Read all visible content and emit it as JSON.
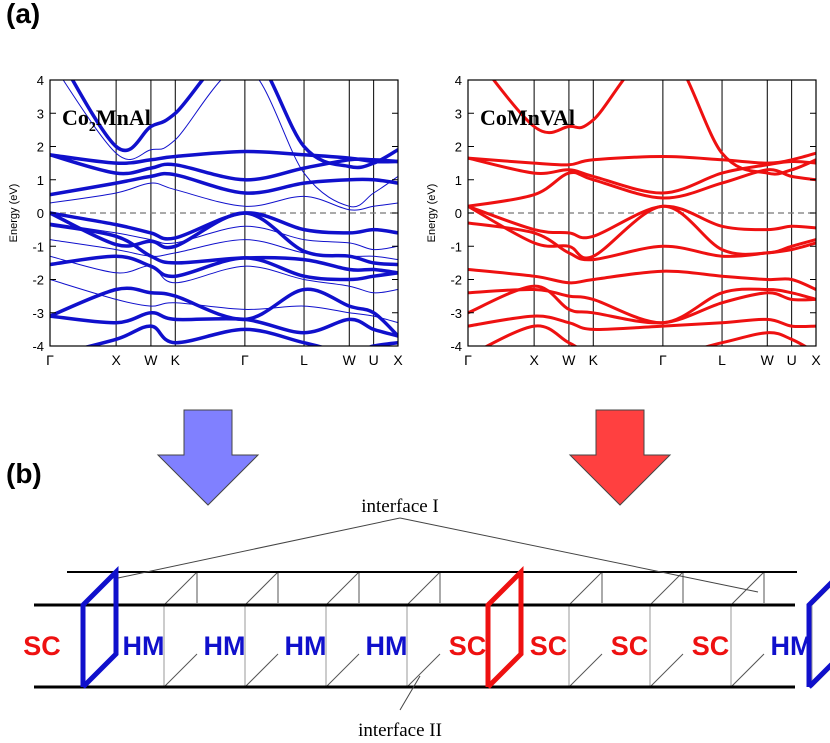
{
  "panels": {
    "a": "(a)",
    "b": "(b)"
  },
  "chart_data": [
    {
      "type": "line",
      "title": "Co2MnAl",
      "title_parts": [
        "Co",
        "2",
        "MnAl"
      ],
      "ylabel": "Energy (eV)",
      "ylim": [
        -4,
        4
      ],
      "yticks": [
        "4",
        "3",
        "2",
        "1",
        "0",
        "-1",
        "-2",
        "-3",
        "-4"
      ],
      "kpoints": [
        {
          "label": "Γ",
          "pos": 0
        },
        {
          "label": "X",
          "pos": 0.19
        },
        {
          "label": "W",
          "pos": 0.29
        },
        {
          "label": "K",
          "pos": 0.36
        },
        {
          "label": "Γ",
          "pos": 0.56
        },
        {
          "label": "L",
          "pos": 0.73
        },
        {
          "label": "W",
          "pos": 0.86
        },
        {
          "label": "U",
          "pos": 0.93
        },
        {
          "label": "X",
          "pos": 1.0
        }
      ],
      "fermi_level": 0,
      "color": "#1010cc",
      "bands": [
        {
          "w": 3.5,
          "y": [
            1.75,
            1.5,
            1.6,
            1.7,
            1.85,
            1.75,
            1.65,
            1.55,
            1.55
          ]
        },
        {
          "w": 3.5,
          "y": [
            1.75,
            1.2,
            1.35,
            1.45,
            1.0,
            1.35,
            1.6,
            1.6,
            1.55
          ]
        },
        {
          "w": 3.5,
          "y": [
            0.55,
            0.9,
            1.1,
            1.15,
            0.6,
            0.9,
            1.0,
            1.0,
            0.9
          ]
        },
        {
          "w": 3.5,
          "y": [
            0.0,
            -0.35,
            -0.6,
            -0.75,
            0.0,
            -0.5,
            -0.6,
            -0.5,
            -0.6
          ]
        },
        {
          "w": 3.5,
          "y": [
            0.0,
            -0.95,
            -0.85,
            -1.0,
            0.0,
            -1.15,
            -1.3,
            -1.5,
            -1.55
          ]
        },
        {
          "w": 3.5,
          "y": [
            -0.35,
            -0.7,
            -1.3,
            -1.5,
            -1.35,
            -1.4,
            -1.7,
            -1.7,
            -1.8
          ]
        },
        {
          "w": 3.5,
          "y": [
            -1.55,
            -1.3,
            -1.6,
            -1.9,
            -1.35,
            -1.9,
            -2.0,
            -1.9,
            -1.8
          ]
        },
        {
          "w": 3.5,
          "y": [
            -3.1,
            -2.3,
            -2.4,
            -2.5,
            -3.2,
            -2.3,
            -2.8,
            -3.0,
            -3.7
          ]
        },
        {
          "w": 3.5,
          "y": [
            -3.1,
            -3.3,
            -3.0,
            -3.2,
            -3.2,
            -3.6,
            -3.2,
            -3.5,
            -3.7
          ]
        },
        {
          "w": 3.5,
          "y": [
            -4.3,
            -3.8,
            -3.4,
            -3.9,
            -3.5,
            -3.9,
            -4.2,
            -4.0,
            -3.9
          ]
        },
        {
          "w": 3.5,
          "y": [
            5.2,
            2.0,
            2.6,
            3.0,
            5.0,
            2.0,
            1.4,
            1.5,
            1.9
          ]
        },
        {
          "w": 1,
          "y": [
            -0.3,
            -0.6,
            -0.8,
            -0.9,
            -0.4,
            -0.8,
            -0.9,
            -1.1,
            -1.0
          ]
        },
        {
          "w": 1,
          "y": [
            -0.8,
            -1.1,
            -1.3,
            -1.2,
            -0.8,
            -1.2,
            -1.3,
            -1.3,
            -1.4
          ]
        },
        {
          "w": 1,
          "y": [
            -1.3,
            -1.8,
            -1.6,
            -2.1,
            -1.6,
            -2.0,
            -2.2,
            -2.4,
            -2.3
          ]
        },
        {
          "w": 1,
          "y": [
            -2.0,
            -2.6,
            -2.8,
            -2.7,
            -2.9,
            -2.8,
            -3.0,
            -3.1,
            -3.3
          ]
        },
        {
          "w": 1,
          "y": [
            0.3,
            0.6,
            0.9,
            0.7,
            0.2,
            0.5,
            0.1,
            0.2,
            0.3
          ]
        },
        {
          "w": 1,
          "y": [
            4.6,
            1.8,
            1.9,
            2.2,
            4.4,
            1.2,
            0.2,
            0.6,
            1.1
          ]
        }
      ]
    },
    {
      "type": "line",
      "title": "CoMnVAl",
      "ylabel": "Energy (eV)",
      "ylim": [
        -4,
        4
      ],
      "yticks": [
        "4",
        "3",
        "2",
        "1",
        "0",
        "-1",
        "-2",
        "-3",
        "-4"
      ],
      "kpoints": [
        {
          "label": "Γ",
          "pos": 0
        },
        {
          "label": "X",
          "pos": 0.19
        },
        {
          "label": "W",
          "pos": 0.29
        },
        {
          "label": "K",
          "pos": 0.36
        },
        {
          "label": "Γ",
          "pos": 0.56
        },
        {
          "label": "L",
          "pos": 0.73
        },
        {
          "label": "W",
          "pos": 0.86
        },
        {
          "label": "U",
          "pos": 0.93
        },
        {
          "label": "X",
          "pos": 1.0
        }
      ],
      "fermi_level": 0,
      "color": "#ee1111",
      "bands": [
        {
          "w": 3,
          "y": [
            1.65,
            1.5,
            1.45,
            1.6,
            1.7,
            1.6,
            1.5,
            1.6,
            1.8
          ]
        },
        {
          "w": 3,
          "y": [
            1.65,
            1.2,
            1.3,
            1.1,
            0.6,
            1.2,
            1.45,
            1.55,
            1.5
          ]
        },
        {
          "w": 3,
          "y": [
            0.2,
            0.55,
            1.2,
            1.0,
            0.45,
            0.9,
            1.3,
            1.1,
            1.0
          ]
        },
        {
          "w": 3,
          "y": [
            0.2,
            -0.5,
            -0.6,
            -0.7,
            0.2,
            -0.4,
            -0.5,
            -0.4,
            -0.45
          ]
        },
        {
          "w": 3,
          "y": [
            0.2,
            -0.9,
            -1.0,
            -1.3,
            0.2,
            -1.1,
            -1.2,
            -1.0,
            -0.8
          ]
        },
        {
          "w": 3,
          "y": [
            -0.3,
            -0.6,
            -1.2,
            -1.4,
            -1.0,
            -1.3,
            -1.2,
            -1.1,
            -0.9
          ]
        },
        {
          "w": 3,
          "y": [
            -1.7,
            -1.9,
            -2.1,
            -2.0,
            -1.75,
            -1.9,
            -2.0,
            -2.0,
            -2.3
          ]
        },
        {
          "w": 3,
          "y": [
            -2.4,
            -2.3,
            -2.5,
            -2.6,
            -3.3,
            -2.4,
            -2.3,
            -2.4,
            -2.6
          ]
        },
        {
          "w": 3,
          "y": [
            -3.0,
            -2.2,
            -2.9,
            -3.0,
            -3.3,
            -2.7,
            -2.4,
            -2.6,
            -2.6
          ]
        },
        {
          "w": 3,
          "y": [
            -3.4,
            -3.1,
            -3.3,
            -3.5,
            -3.4,
            -3.3,
            -3.2,
            -3.4,
            -3.4
          ]
        },
        {
          "w": 3,
          "y": [
            -4.3,
            -3.4,
            -3.9,
            -4.2,
            -4.3,
            -3.9,
            -3.6,
            -3.8,
            -4.2
          ]
        },
        {
          "w": 3,
          "y": [
            5.0,
            2.6,
            2.6,
            2.8,
            5.0,
            1.8,
            1.2,
            1.3,
            1.6
          ]
        }
      ]
    }
  ],
  "diagram": {
    "cells": [
      {
        "label": "SC",
        "color": "#ee1111"
      },
      {
        "label": "HM",
        "color": "#1010cc"
      },
      {
        "label": "HM",
        "color": "#1010cc"
      },
      {
        "label": "HM",
        "color": "#1010cc"
      },
      {
        "label": "HM",
        "color": "#1010cc"
      },
      {
        "label": "SC",
        "color": "#ee1111"
      },
      {
        "label": "SC",
        "color": "#ee1111"
      },
      {
        "label": "SC",
        "color": "#ee1111"
      },
      {
        "label": "SC",
        "color": "#ee1111"
      },
      {
        "label": "HM",
        "color": "#1010cc"
      }
    ],
    "interface_i_label": "interface I",
    "interface_ii_label": "interface II",
    "arrow_left_color": "#8080ff",
    "arrow_right_color": "#ff4040",
    "hm_color": "#1010cc",
    "sc_color": "#ee1111"
  }
}
